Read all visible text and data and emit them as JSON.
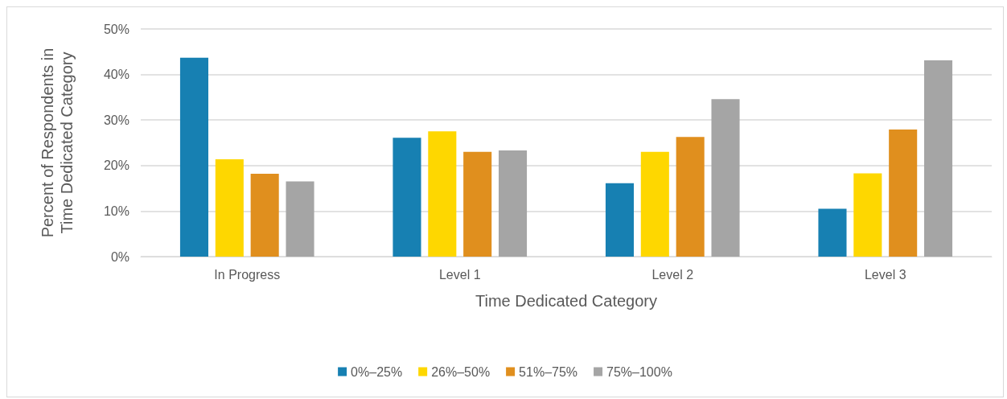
{
  "chart_data": {
    "type": "bar",
    "xlabel": "Time Dedicated Category",
    "ylabel": "Percent of Respondents in Time Dedicated Category",
    "categories": [
      "In Progress",
      "Level 1",
      "Level 2",
      "Level 3"
    ],
    "series": [
      {
        "name": "0%–25%",
        "color": "#1780b2",
        "values": [
          43.7,
          26.1,
          16.1,
          10.5
        ]
      },
      {
        "name": "26%–50%",
        "color": "#fed700",
        "values": [
          21.4,
          27.5,
          23.0,
          18.3
        ]
      },
      {
        "name": "51%–75%",
        "color": "#e08f1e",
        "values": [
          18.2,
          23.0,
          26.3,
          27.9
        ]
      },
      {
        "name": "75%–100%",
        "color": "#a5a5a5",
        "values": [
          16.5,
          23.3,
          34.6,
          43.1
        ]
      }
    ],
    "ylim": [
      0,
      50
    ],
    "yticks": [
      {
        "value": 0,
        "label": "0%"
      },
      {
        "value": 10,
        "label": "10%"
      },
      {
        "value": 20,
        "label": "20%"
      },
      {
        "value": 30,
        "label": "30%"
      },
      {
        "value": 40,
        "label": "40%"
      },
      {
        "value": 50,
        "label": "50%"
      }
    ],
    "grid": "y",
    "legend": "bottom"
  }
}
